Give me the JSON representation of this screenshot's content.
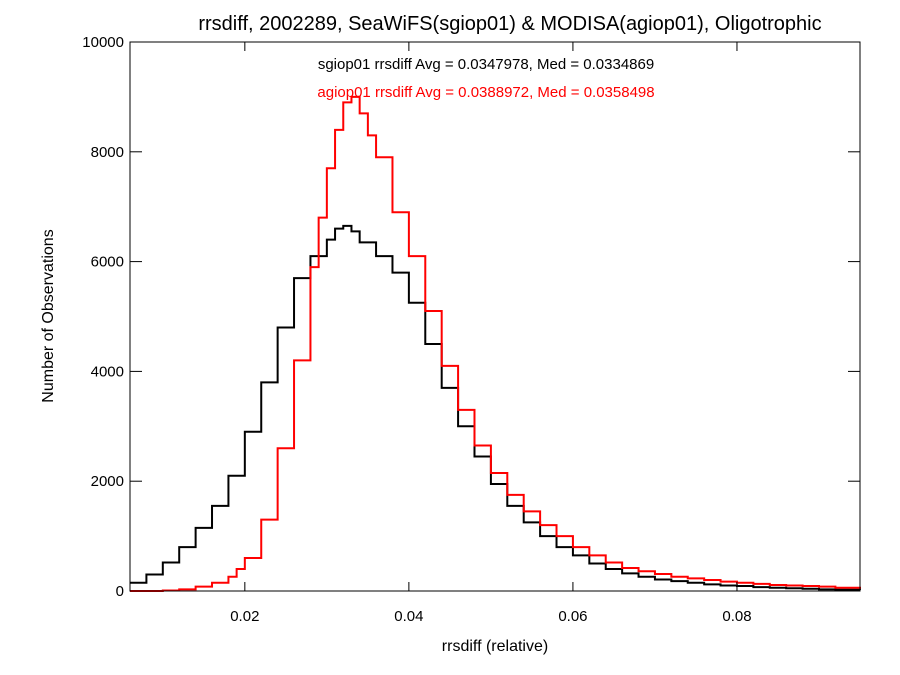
{
  "chart_data": {
    "type": "line",
    "title": "rrsdiff, 2002289, SeaWiFS(sgiop01) & MODISA(agiop01), Oligotrophic",
    "xlabel": "rrsdiff (relative)",
    "ylabel": "Number of Observations",
    "xlim": [
      0.006,
      0.095
    ],
    "ylim": [
      0,
      10000
    ],
    "x_ticks": [
      0.02,
      0.04,
      0.06,
      0.08
    ],
    "x_tick_labels": [
      "0.02",
      "0.04",
      "0.06",
      "0.08"
    ],
    "y_ticks": [
      0,
      2000,
      4000,
      6000,
      8000,
      10000
    ],
    "y_tick_labels": [
      "0",
      "2000",
      "4000",
      "6000",
      "8000",
      "10000"
    ],
    "grid": false,
    "step": "histogram",
    "annotations": [
      {
        "text": "sgiop01 rrsdiff Avg = 0.0347978, Med = 0.0334869",
        "color": "#000000"
      },
      {
        "text": "agiop01 rrsdiff Avg = 0.0388972, Med = 0.0358498",
        "color": "#ff0000"
      }
    ],
    "series": [
      {
        "color": "#000000",
        "x": [
          0.006,
          0.008,
          0.01,
          0.012,
          0.014,
          0.016,
          0.018,
          0.02,
          0.022,
          0.024,
          0.026,
          0.028,
          0.03,
          0.031,
          0.032,
          0.033,
          0.034,
          0.036,
          0.038,
          0.04,
          0.042,
          0.044,
          0.046,
          0.048,
          0.05,
          0.052,
          0.054,
          0.056,
          0.058,
          0.06,
          0.062,
          0.064,
          0.066,
          0.068,
          0.07,
          0.072,
          0.074,
          0.076,
          0.078,
          0.08,
          0.082,
          0.084,
          0.086,
          0.088,
          0.09,
          0.092,
          0.095
        ],
        "y": [
          150,
          300,
          520,
          800,
          1150,
          1550,
          2100,
          2900,
          3800,
          4800,
          5700,
          6100,
          6400,
          6600,
          6650,
          6550,
          6350,
          6100,
          5800,
          5250,
          4500,
          3700,
          3000,
          2450,
          1950,
          1550,
          1250,
          1000,
          800,
          650,
          500,
          400,
          320,
          260,
          210,
          180,
          150,
          120,
          100,
          90,
          70,
          60,
          50,
          40,
          30,
          25,
          20
        ]
      },
      {
        "color": "#ff0000",
        "x": [
          0.006,
          0.01,
          0.012,
          0.014,
          0.016,
          0.018,
          0.019,
          0.02,
          0.022,
          0.024,
          0.026,
          0.028,
          0.029,
          0.03,
          0.031,
          0.032,
          0.033,
          0.034,
          0.035,
          0.036,
          0.038,
          0.04,
          0.042,
          0.044,
          0.046,
          0.048,
          0.05,
          0.052,
          0.054,
          0.056,
          0.058,
          0.06,
          0.062,
          0.064,
          0.066,
          0.068,
          0.07,
          0.072,
          0.074,
          0.076,
          0.078,
          0.08,
          0.082,
          0.084,
          0.086,
          0.088,
          0.09,
          0.092,
          0.095
        ],
        "y": [
          0,
          10,
          30,
          80,
          150,
          260,
          400,
          600,
          1300,
          2600,
          4200,
          5900,
          6800,
          7700,
          8400,
          8900,
          9000,
          8700,
          8300,
          7900,
          6900,
          6100,
          5100,
          4100,
          3300,
          2650,
          2150,
          1750,
          1450,
          1200,
          1000,
          800,
          650,
          520,
          420,
          360,
          310,
          260,
          230,
          200,
          170,
          150,
          130,
          110,
          100,
          90,
          80,
          60,
          40
        ]
      }
    ]
  }
}
